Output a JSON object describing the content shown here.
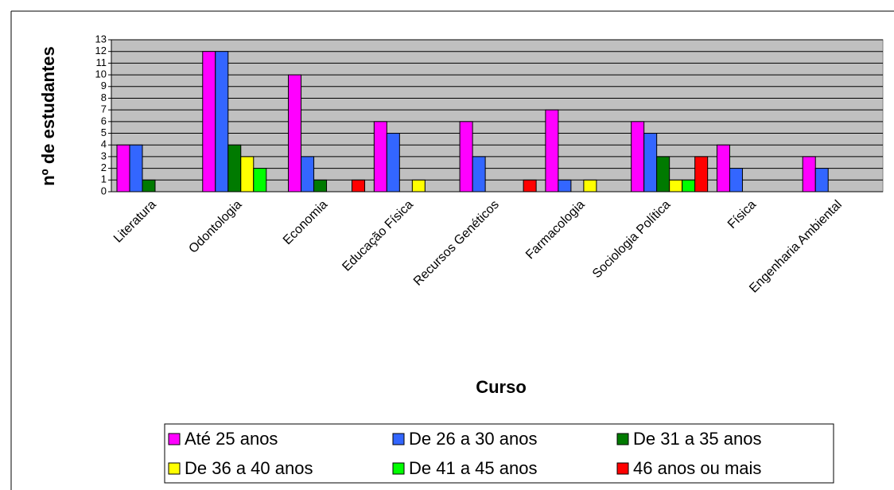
{
  "chart_data": {
    "type": "bar",
    "y_label": "nº de estudantes",
    "x_label": "Curso",
    "categories": [
      "Literatura",
      "Odontologia",
      "Economia",
      "Educação Física",
      "Recursos Genéticos",
      "Farmacologia",
      "Sociologia Política",
      "Física",
      "Engenharia Ambiental"
    ],
    "series": [
      {
        "name": "Até 25 anos",
        "color": "#ff00ff",
        "values": [
          4,
          12,
          10,
          6,
          6,
          7,
          6,
          4,
          3
        ]
      },
      {
        "name": "De 26 a 30 anos",
        "color": "#3366ff",
        "values": [
          4,
          12,
          3,
          5,
          3,
          1,
          5,
          2,
          2
        ]
      },
      {
        "name": "De 31 a 35 anos",
        "color": "#007a00",
        "values": [
          1,
          4,
          1,
          0,
          0,
          0,
          3,
          0,
          0
        ]
      },
      {
        "name": "De 36 a 40 anos",
        "color": "#ffff00",
        "values": [
          0,
          3,
          0,
          1,
          0,
          1,
          1,
          0,
          0
        ]
      },
      {
        "name": "De 41 a 45 anos",
        "color": "#00ff00",
        "values": [
          0,
          2,
          0,
          0,
          0,
          0,
          1,
          0,
          0
        ]
      },
      {
        "name": "46 anos ou mais",
        "color": "#ff0000",
        "values": [
          0,
          0,
          1,
          0,
          1,
          0,
          3,
          0,
          0
        ]
      }
    ],
    "ylim": [
      0,
      13
    ],
    "yticks": [
      0,
      1,
      2,
      3,
      4,
      5,
      6,
      7,
      8,
      9,
      10,
      11,
      12,
      13
    ],
    "grid": true,
    "legend": "bottom",
    "plot_background": "#c0c0c0"
  }
}
